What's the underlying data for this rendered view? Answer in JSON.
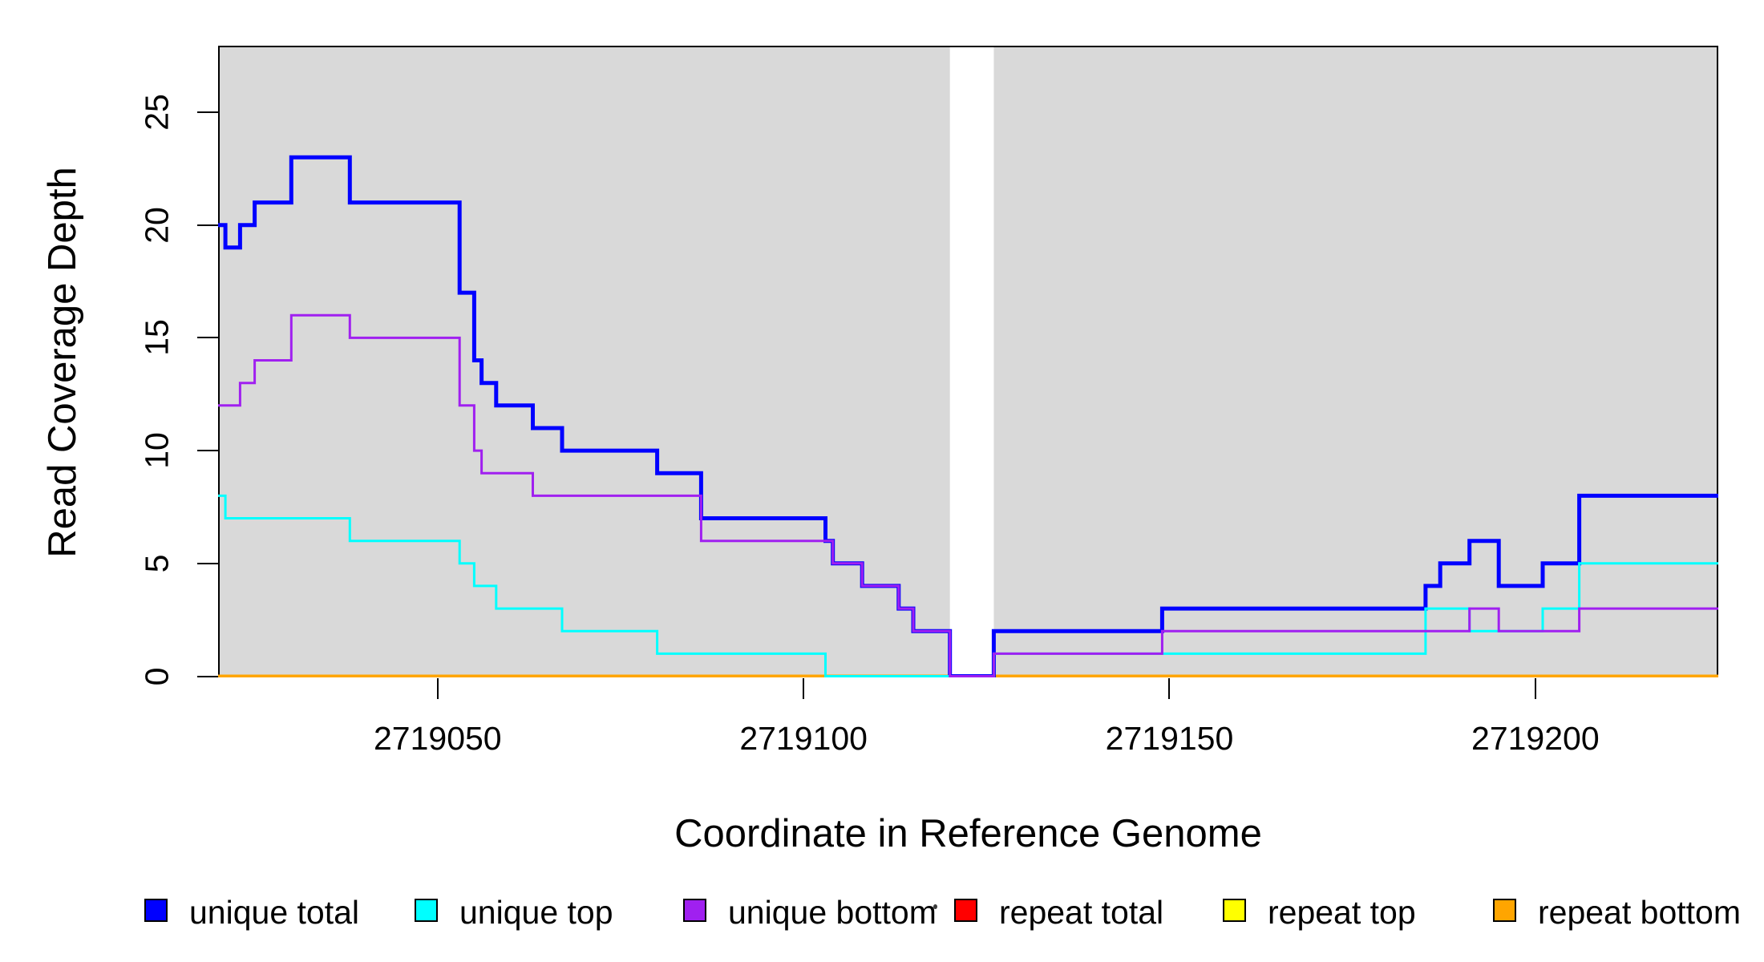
{
  "figure": {
    "x_axis_label": "Coordinate in Reference Genome",
    "y_axis_label": "Read Coverage Depth"
  },
  "chart_data": {
    "type": "line",
    "subtype": "step",
    "title": "",
    "xlabel": "Coordinate in Reference Genome",
    "ylabel": "Read Coverage Depth",
    "xlim": [
      2719020,
      2719225
    ],
    "ylim": [
      0,
      27.95
    ],
    "grid": false,
    "plot_background_color": "#D9D9D9",
    "gap_region": {
      "x0": 2719120,
      "x1": 2719126,
      "color": "#FFFFFF"
    },
    "background_regions": [
      {
        "x0": 2719020,
        "x1": 2719120,
        "color": "#D9D9D9"
      },
      {
        "x0": 2719126,
        "x1": 2719225,
        "color": "#D9D9D9"
      }
    ],
    "x_ticks": [
      {
        "value": 2719050,
        "label": "2719050"
      },
      {
        "value": 2719100,
        "label": "2719100"
      },
      {
        "value": 2719150,
        "label": "2719150"
      },
      {
        "value": 2719200,
        "label": "2719200"
      }
    ],
    "y_ticks": [
      {
        "value": 0,
        "label": "0"
      },
      {
        "value": 5,
        "label": "5"
      },
      {
        "value": 10,
        "label": "10"
      },
      {
        "value": 15,
        "label": "15"
      },
      {
        "value": 20,
        "label": "20"
      },
      {
        "value": 25,
        "label": "25"
      }
    ],
    "series": [
      {
        "name": "repeat total",
        "color": "#FF0000",
        "width": 3,
        "steps": [
          [
            2719020,
            0
          ]
        ]
      },
      {
        "name": "repeat top",
        "color": "#FFFF00",
        "width": 3,
        "steps": [
          [
            2719020,
            0
          ]
        ]
      },
      {
        "name": "repeat bottom",
        "color": "#FFA500",
        "width": 4,
        "steps": [
          [
            2719020,
            0
          ]
        ]
      },
      {
        "name": "unique total",
        "color": "#0000FF",
        "width": 5,
        "steps": [
          [
            2719020,
            20
          ],
          [
            2719021,
            19
          ],
          [
            2719023,
            20
          ],
          [
            2719025,
            21
          ],
          [
            2719030,
            23
          ],
          [
            2719038,
            21
          ],
          [
            2719053,
            17
          ],
          [
            2719055,
            14
          ],
          [
            2719056,
            13
          ],
          [
            2719058,
            12
          ],
          [
            2719063,
            11
          ],
          [
            2719067,
            10
          ],
          [
            2719080,
            9
          ],
          [
            2719086,
            7
          ],
          [
            2719103,
            6
          ],
          [
            2719104,
            5
          ],
          [
            2719108,
            4
          ],
          [
            2719113,
            3
          ],
          [
            2719115,
            2
          ],
          [
            2719120,
            0
          ],
          [
            2719126,
            2
          ],
          [
            2719149,
            3
          ],
          [
            2719185,
            4
          ],
          [
            2719187,
            5
          ],
          [
            2719191,
            6
          ],
          [
            2719195,
            4
          ],
          [
            2719201,
            5
          ],
          [
            2719206,
            8
          ]
        ]
      },
      {
        "name": "unique top",
        "color": "#00FFFF",
        "width": 3,
        "steps": [
          [
            2719020,
            8
          ],
          [
            2719021,
            7
          ],
          [
            2719038,
            6
          ],
          [
            2719053,
            5
          ],
          [
            2719055,
            4
          ],
          [
            2719058,
            3
          ],
          [
            2719067,
            2
          ],
          [
            2719080,
            1
          ],
          [
            2719103,
            0
          ],
          [
            2719126,
            1
          ],
          [
            2719185,
            3
          ],
          [
            2719191,
            2
          ],
          [
            2719201,
            3
          ],
          [
            2719206,
            5
          ]
        ]
      },
      {
        "name": "unique bottom",
        "color": "#A020F0",
        "width": 3,
        "steps": [
          [
            2719020,
            12
          ],
          [
            2719023,
            13
          ],
          [
            2719025,
            14
          ],
          [
            2719030,
            16
          ],
          [
            2719038,
            15
          ],
          [
            2719053,
            12
          ],
          [
            2719055,
            10
          ],
          [
            2719056,
            9
          ],
          [
            2719063,
            8
          ],
          [
            2719086,
            6
          ],
          [
            2719104,
            5
          ],
          [
            2719108,
            4
          ],
          [
            2719113,
            3
          ],
          [
            2719115,
            2
          ],
          [
            2719120,
            0
          ],
          [
            2719126,
            1
          ],
          [
            2719149,
            2
          ],
          [
            2719191,
            3
          ],
          [
            2719195,
            2
          ],
          [
            2719206,
            3
          ]
        ]
      }
    ],
    "legend": {
      "position": "bottom",
      "items": [
        {
          "label": "unique total",
          "color": "#0000FF"
        },
        {
          "label": "unique top",
          "color": "#00FFFF"
        },
        {
          "label": "unique bottom",
          "color": "#A020F0"
        },
        {
          "label": "repeat total",
          "color": "#FF0000"
        },
        {
          "label": "repeat top",
          "color": "#FFFF00"
        },
        {
          "label": "repeat bottom",
          "color": "#FFA500"
        }
      ]
    }
  }
}
